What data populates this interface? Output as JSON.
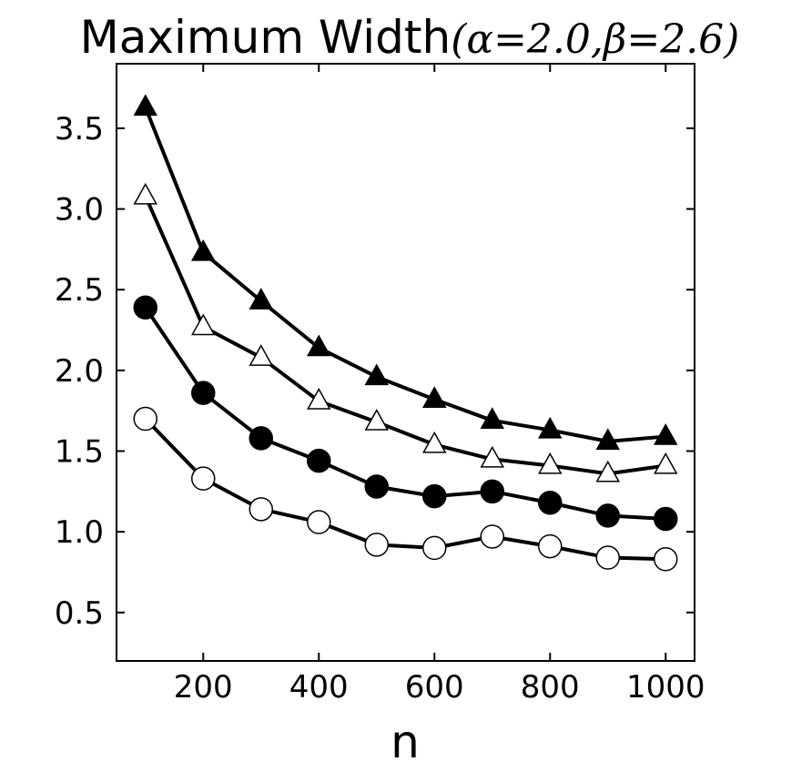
{
  "chart_data": {
    "type": "line",
    "title": "Maximum Width",
    "title_params": "(α=2.0,β=2.6)",
    "xlabel": "n",
    "ylabel": "",
    "xlim": [
      50,
      1050
    ],
    "ylim": [
      0.2,
      3.9
    ],
    "x_ticks": [
      200,
      400,
      600,
      800,
      1000
    ],
    "x_tick_labels": [
      "200",
      "400",
      "600",
      "800",
      "1000"
    ],
    "y_ticks": [
      0.5,
      1.0,
      1.5,
      2.0,
      2.5,
      3.0,
      3.5
    ],
    "y_tick_labels": [
      "0.5",
      "1.0",
      "1.5",
      "2.0",
      "2.5",
      "3.0",
      "3.5"
    ],
    "grid": false,
    "x": [
      100,
      200,
      300,
      400,
      500,
      600,
      700,
      800,
      900,
      1000
    ],
    "series": [
      {
        "marker": "filled-triangle",
        "values": [
          3.63,
          2.73,
          2.43,
          2.14,
          1.96,
          1.82,
          1.69,
          1.63,
          1.56,
          1.59
        ]
      },
      {
        "marker": "open-triangle",
        "values": [
          3.08,
          2.27,
          2.08,
          1.81,
          1.68,
          1.54,
          1.45,
          1.41,
          1.36,
          1.41
        ]
      },
      {
        "marker": "filled-circle",
        "values": [
          2.39,
          1.86,
          1.58,
          1.44,
          1.28,
          1.22,
          1.25,
          1.18,
          1.1,
          1.08
        ]
      },
      {
        "marker": "open-circle",
        "values": [
          1.7,
          1.33,
          1.14,
          1.06,
          0.92,
          0.9,
          0.97,
          0.91,
          0.84,
          0.83
        ]
      }
    ],
    "colors": {
      "line": "#000000",
      "background": "#ffffff"
    }
  }
}
